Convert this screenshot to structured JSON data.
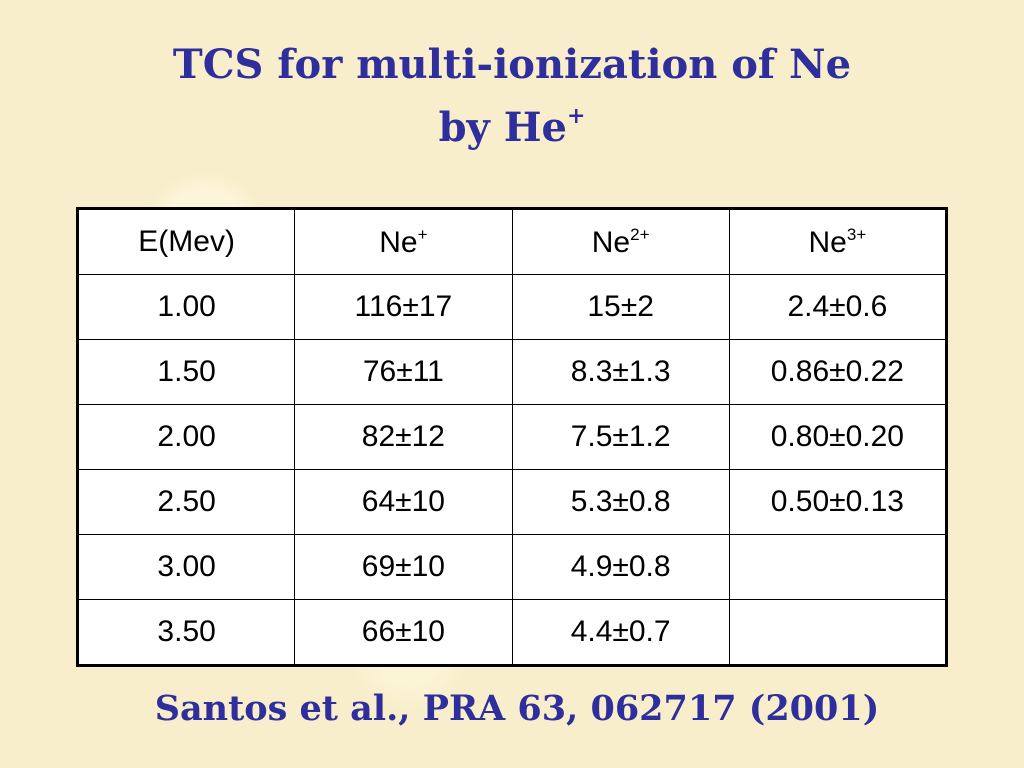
{
  "header": {
    "title_line1": "TCS for multi-ionization of Ne",
    "title_line2": "by He",
    "title_line2_sup": "+"
  },
  "table": {
    "columns": [
      {
        "text": "E(Mev)"
      },
      {
        "text": "Ne",
        "sup": "+"
      },
      {
        "text": "Ne",
        "sup": "2+"
      },
      {
        "text": "Ne",
        "sup": "3+"
      }
    ],
    "rows": [
      [
        "1.00",
        "116±17",
        "15±2",
        "2.4±0.6"
      ],
      [
        "1.50",
        "76±11",
        "8.3±1.3",
        "0.86±0.22"
      ],
      [
        "2.00",
        "82±12",
        "7.5±1.2",
        "0.80±0.20"
      ],
      [
        "2.50",
        "64±10",
        "5.3±0.8",
        "0.50±0.13"
      ],
      [
        "3.00",
        "69±10",
        "4.9±0.8"
      ],
      [
        "3.50",
        "66±10",
        "4.4±0.7"
      ]
    ]
  },
  "footer": {
    "citation": "Santos et al., PRA 63, 062717 (2001)"
  }
}
